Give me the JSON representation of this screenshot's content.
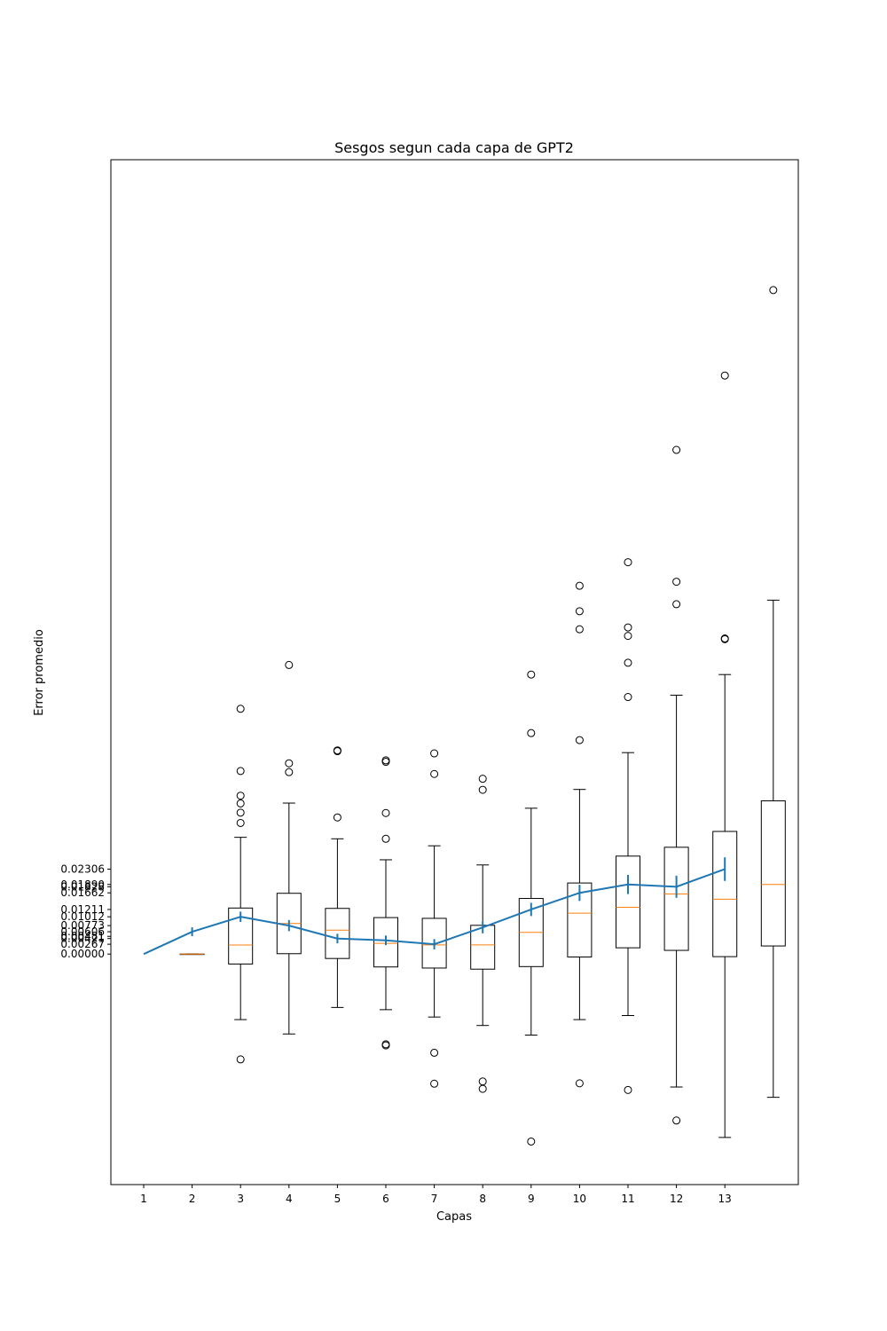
{
  "chart_data": {
    "type": "box",
    "title": "Sesgos segun cada capa de GPT2",
    "xlabel": "Capas",
    "ylabel": "Error promedio",
    "x_ticks": [
      "1",
      "2",
      "3",
      "4",
      "5",
      "6",
      "7",
      "8",
      "9",
      "10",
      "11",
      "12",
      "13"
    ],
    "y_ticks": [
      {
        "value": 0.0,
        "label": "0.00000"
      },
      {
        "value": 0.00267,
        "label": "0.00267"
      },
      {
        "value": 0.00421,
        "label": "0.00421"
      },
      {
        "value": 0.00481,
        "label": "0.00481"
      },
      {
        "value": 0.00606,
        "label": "0.00606"
      },
      {
        "value": 0.00773,
        "label": "0.00773"
      },
      {
        "value": 0.01012,
        "label": "0.01012"
      },
      {
        "value": 0.01211,
        "label": "0.01211"
      },
      {
        "value": 0.01662,
        "label": "0.01662"
      },
      {
        "value": 0.01828,
        "label": "0.01828"
      },
      {
        "value": 0.0189,
        "label": "0.01890"
      },
      {
        "value": 0.02306,
        "label": "0.02306"
      }
    ],
    "ylim": [
      -0.0626,
      0.2157
    ],
    "mean_line": {
      "x": [
        1,
        2,
        3,
        4,
        5,
        6,
        7,
        8,
        9,
        10,
        11,
        12,
        13
      ],
      "y": [
        0.0,
        0.00606,
        0.01012,
        0.00773,
        0.00421,
        0.00373,
        0.00267,
        0.00723,
        0.01211,
        0.01662,
        0.0189,
        0.01828,
        0.02306
      ],
      "err": [
        0.0,
        0.0012,
        0.0014,
        0.0015,
        0.0013,
        0.0013,
        0.0014,
        0.0016,
        0.0018,
        0.0022,
        0.0026,
        0.003,
        0.0032
      ],
      "color": "#1f77b4"
    },
    "boxes": [
      {
        "x": 2,
        "whislo": 0.0,
        "q1": 0.0,
        "med": 0.0,
        "q3": 0.0,
        "whishi": 0.0,
        "fliers": []
      },
      {
        "x": 3,
        "whislo": -0.0178,
        "q1": -0.0027,
        "med": 0.00245,
        "q3": 0.0125,
        "whishi": 0.0317,
        "fliers": [
          0.0666,
          0.0497,
          0.043,
          0.0409,
          0.0384,
          0.0356,
          -0.0286
        ]
      },
      {
        "x": 4,
        "whislo": -0.0217,
        "q1": 0.0001,
        "med": 0.0083,
        "q3": 0.0165,
        "whishi": 0.041,
        "fliers": [
          0.0785,
          0.0518,
          0.0494
        ]
      },
      {
        "x": 5,
        "whislo": -0.0145,
        "q1": -0.0012,
        "med": 0.0065,
        "q3": 0.0124,
        "whishi": 0.0313,
        "fliers": [
          0.0553,
          0.0551,
          0.0371
        ]
      },
      {
        "x": 6,
        "whislo": -0.0151,
        "q1": -0.0035,
        "med": 0.0029,
        "q3": 0.0099,
        "whishi": 0.0256,
        "fliers": [
          0.0526,
          0.0522,
          0.0383,
          0.0313,
          -0.0245,
          -0.0248
        ]
      },
      {
        "x": 7,
        "whislo": -0.0171,
        "q1": -0.0038,
        "med": 0.0025,
        "q3": 0.0097,
        "whishi": 0.0294,
        "fliers": [
          0.0545,
          0.0489,
          -0.0268,
          -0.0352
        ]
      },
      {
        "x": 8,
        "whislo": -0.0194,
        "q1": -0.0041,
        "med": 0.0025,
        "q3": 0.0078,
        "whishi": 0.0242,
        "fliers": [
          0.0476,
          0.0446,
          -0.0346,
          -0.0366
        ]
      },
      {
        "x": 9,
        "whislo": -0.022,
        "q1": -0.0034,
        "med": 0.0059,
        "q3": 0.0151,
        "whishi": 0.0396,
        "fliers": [
          0.0759,
          0.06,
          -0.0509
        ]
      },
      {
        "x": 10,
        "whislo": -0.0178,
        "q1": -0.0008,
        "med": 0.0111,
        "q3": 0.0193,
        "whishi": 0.0447,
        "fliers": [
          0.1,
          0.0931,
          0.0882,
          0.0581,
          -0.0351
        ]
      },
      {
        "x": 11,
        "whislo": -0.0167,
        "q1": 0.0017,
        "med": 0.0127,
        "q3": 0.0266,
        "whishi": 0.0547,
        "fliers": [
          0.1064,
          0.0887,
          0.0864,
          0.0791,
          0.0698,
          -0.0369
        ]
      },
      {
        "x": 12,
        "whislo": -0.0361,
        "q1": 0.001,
        "med": 0.0163,
        "q3": 0.029,
        "whishi": 0.0703,
        "fliers": [
          0.1369,
          0.1011,
          0.095,
          -0.0452
        ]
      },
      {
        "x": 13,
        "whislo": -0.0498,
        "q1": -0.0007,
        "med": 0.0149,
        "q3": 0.0333,
        "whishi": 0.0759,
        "fliers": [
          0.1571,
          0.0857,
          0.0855
        ]
      },
      {
        "x": 14,
        "whislo": -0.0389,
        "q1": 0.0022,
        "med": 0.0189,
        "q3": 0.0416,
        "whishi": 0.0961,
        "fliers": [
          0.1803
        ]
      }
    ]
  }
}
